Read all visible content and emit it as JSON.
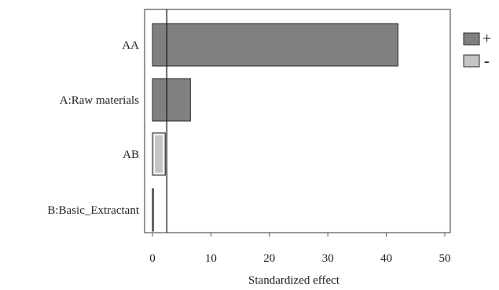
{
  "chart_data": {
    "type": "bar",
    "orientation": "horizontal",
    "title": "",
    "xlabel": "Standardized effect",
    "ylabel": "",
    "xlim": [
      0,
      50
    ],
    "xticks": [
      "0",
      "10",
      "20",
      "30",
      "40",
      "50"
    ],
    "categories": [
      "AA",
      "A:Raw materials",
      "AB",
      "B:Basic_Extractant"
    ],
    "values": [
      42.0,
      6.5,
      2.2,
      0.1
    ],
    "signs": [
      "+",
      "+",
      "-",
      "+"
    ],
    "reference_line": 2.45,
    "legend": {
      "placement": "top-right, outside plot",
      "entries": [
        {
          "label": "+",
          "color": "#808080"
        },
        {
          "label": "-",
          "color": "#c4c4c4"
        }
      ]
    },
    "colors": {
      "positive": "#808080",
      "negative": "#c4c4c4",
      "axis": "#555555",
      "bar_edge": "#2b2b2b"
    },
    "grid": false
  }
}
